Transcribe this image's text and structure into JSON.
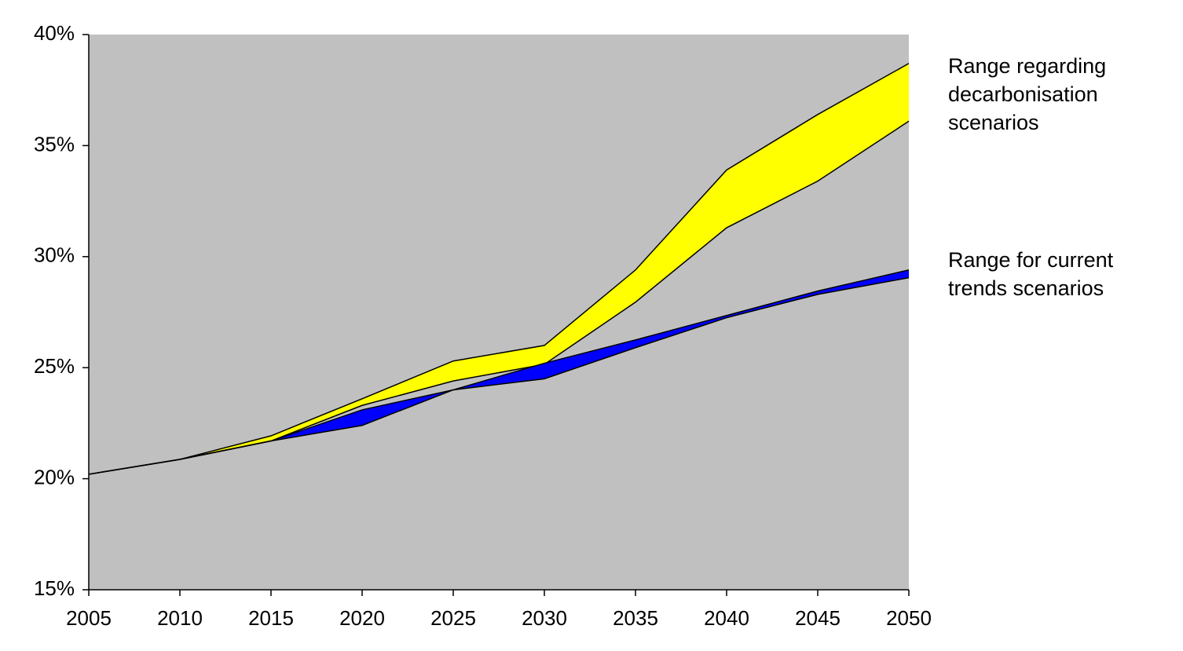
{
  "chart_data": {
    "type": "range-area",
    "x": [
      2005,
      2010,
      2015,
      2020,
      2025,
      2030,
      2035,
      2040,
      2045,
      2050
    ],
    "xlim": [
      2005,
      2050
    ],
    "xticks": [
      2005,
      2010,
      2015,
      2020,
      2025,
      2030,
      2035,
      2040,
      2045,
      2050
    ],
    "ylim": [
      15,
      40
    ],
    "yticks": [
      {
        "value": 15,
        "label": "15%"
      },
      {
        "value": 20,
        "label": "20%"
      },
      {
        "value": 25,
        "label": "25%"
      },
      {
        "value": 30,
        "label": "30%"
      },
      {
        "value": 35,
        "label": "35%"
      },
      {
        "value": 40,
        "label": "40%"
      }
    ],
    "background": "#c0c0c0",
    "series": [
      {
        "name": "Range regarding decarbonisation scenarios",
        "color": "#ffff00",
        "low": [
          20.2,
          20.87,
          21.7,
          23.3,
          24.4,
          25.15,
          27.95,
          31.3,
          33.4,
          36.1
        ],
        "high": [
          20.2,
          20.87,
          21.93,
          23.6,
          25.3,
          26.0,
          29.4,
          33.9,
          36.4,
          38.7
        ]
      },
      {
        "name": "Range for current trends scenarios",
        "color": "#0000ff",
        "low": [
          20.2,
          20.87,
          21.7,
          22.4,
          24.0,
          24.5,
          25.9,
          27.25,
          28.3,
          29.05
        ],
        "high": [
          20.2,
          20.87,
          21.7,
          23.1,
          24.0,
          25.2,
          26.25,
          27.35,
          28.45,
          29.4
        ]
      }
    ]
  }
}
